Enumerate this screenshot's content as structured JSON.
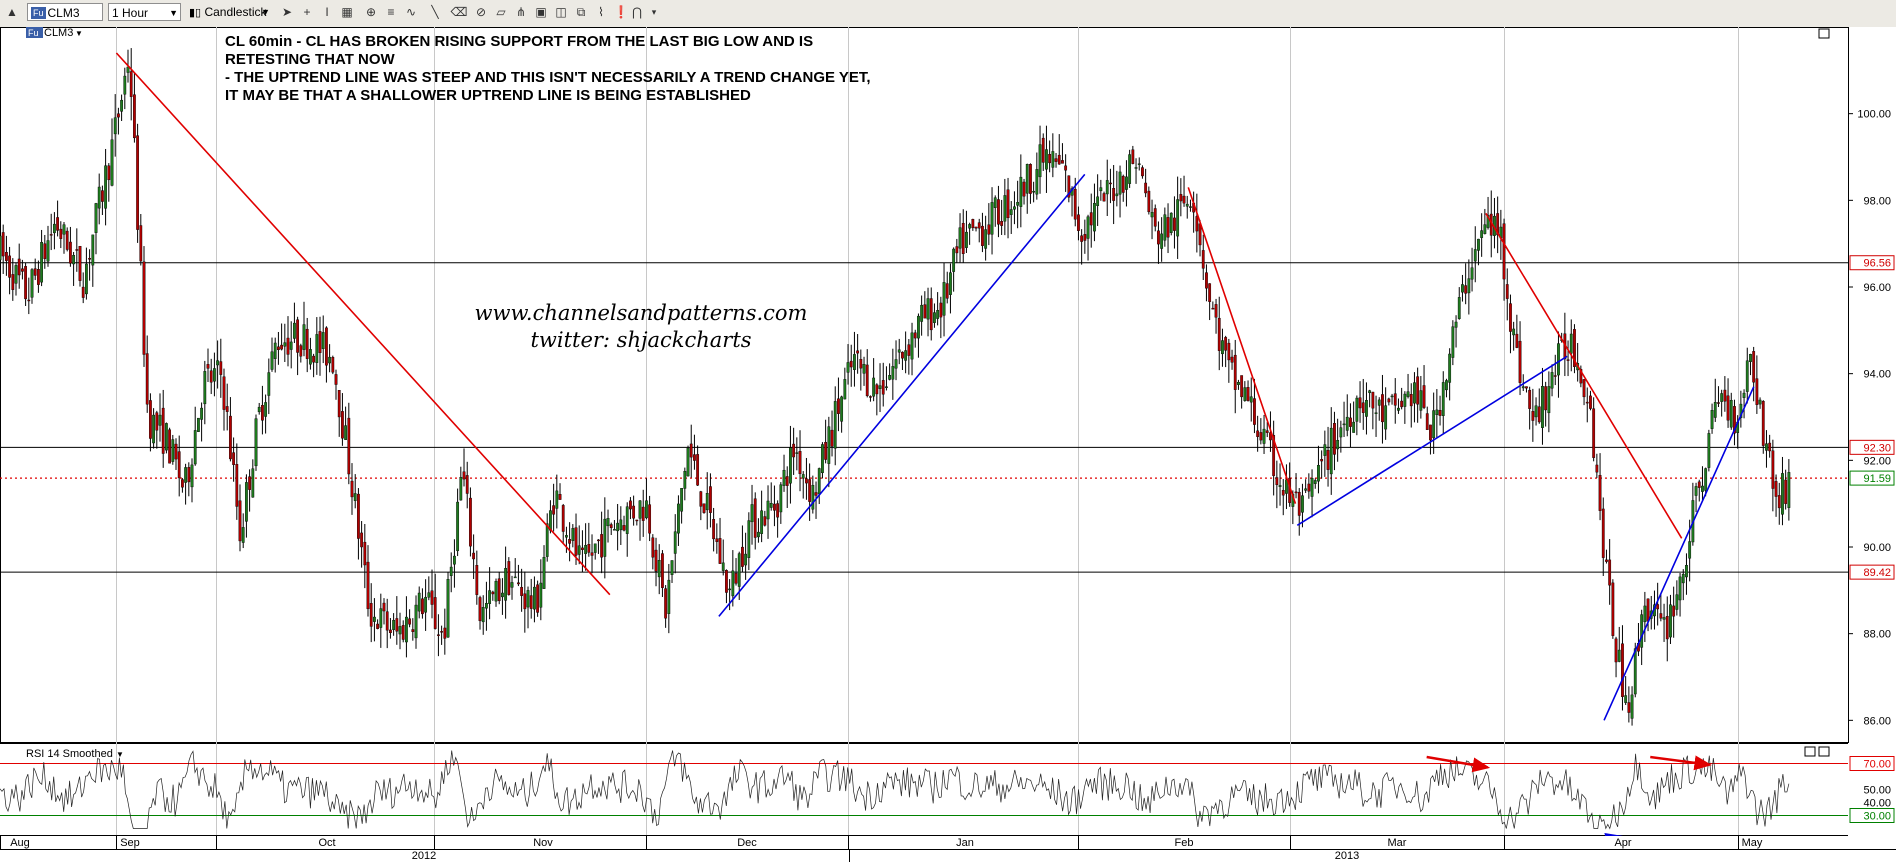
{
  "toolbar": {
    "symbol_prefix": "Fu",
    "symbol": "CLM3",
    "interval": "1 Hour",
    "chart_style": "Candlestick"
  },
  "chart_data": [
    {
      "type": "candlestick",
      "title": "CL 60min - CL HAS BROKEN RISING SUPPORT FROM THE LAST BIG LOW AND IS RETESTING THAT NOW - THE UPTREND LINE WAS STEEP AND THIS ISN'T NECESSARILY A TREND CHANGE YET, IT MAY BE THAT A SHALLOWER UPTREND LINE IS BEING ESTABLISHED",
      "annotation_lines": [
        "CL 60min - CL HAS BROKEN RISING SUPPORT FROM THE LAST BIG LOW AND IS",
        "RETESTING THAT NOW",
        "- THE UPTREND LINE WAS STEEP AND THIS ISN'T NECESSARILY A TREND CHANGE YET,",
        "IT MAY BE THAT A SHALLOWER UPTREND LINE IS BEING ESTABLISHED"
      ],
      "symbol_label": "CLM3",
      "symbol_prefix": "Fu",
      "watermark": [
        "www.channelsandpatterns.com",
        "twitter: shjackcharts"
      ],
      "ylim": [
        85.5,
        102.0
      ],
      "y_ticks": [
        "86.00",
        "88.00",
        "90.00",
        "92.00",
        "94.00",
        "96.00",
        "98.00",
        "100.00"
      ],
      "horizontal_levels": [
        {
          "value": 96.56,
          "label": "96.56",
          "color": "#d00000"
        },
        {
          "value": 92.3,
          "label": "92.30",
          "color": "#d00000"
        },
        {
          "value": 89.42,
          "label": "89.42",
          "color": "#d00000"
        }
      ],
      "last_price": {
        "value": 91.59,
        "label": "91.59",
        "color": "#008000"
      },
      "x_months": [
        "Aug",
        "Sep",
        "Oct",
        "Nov",
        "Dec",
        "Jan",
        "Feb",
        "Mar",
        "Apr",
        "May"
      ],
      "x_years": [
        "2012",
        "2013"
      ],
      "price_path": [
        [
          0.0,
          96.8
        ],
        [
          0.015,
          95.8
        ],
        [
          0.03,
          97.5
        ],
        [
          0.045,
          96.2
        ],
        [
          0.062,
          99.5
        ],
        [
          0.07,
          101.4
        ],
        [
          0.08,
          93.0
        ],
        [
          0.09,
          92.5
        ],
        [
          0.1,
          91.3
        ],
        [
          0.11,
          93.8
        ],
        [
          0.12,
          94.0
        ],
        [
          0.13,
          90.3
        ],
        [
          0.14,
          93.0
        ],
        [
          0.15,
          94.8
        ],
        [
          0.165,
          94.8
        ],
        [
          0.18,
          94.4
        ],
        [
          0.19,
          91.6
        ],
        [
          0.2,
          88.5
        ],
        [
          0.215,
          88.0
        ],
        [
          0.23,
          88.8
        ],
        [
          0.24,
          87.9
        ],
        [
          0.25,
          91.8
        ],
        [
          0.26,
          88.4
        ],
        [
          0.275,
          89.3
        ],
        [
          0.29,
          88.6
        ],
        [
          0.3,
          91.3
        ],
        [
          0.315,
          89.5
        ],
        [
          0.33,
          90.5
        ],
        [
          0.34,
          90.8
        ],
        [
          0.35,
          91.0
        ],
        [
          0.36,
          88.5
        ],
        [
          0.372,
          92.3
        ],
        [
          0.385,
          90.5
        ],
        [
          0.395,
          88.9
        ],
        [
          0.405,
          90.5
        ],
        [
          0.42,
          91.0
        ],
        [
          0.43,
          92.3
        ],
        [
          0.44,
          91.2
        ],
        [
          0.452,
          93.0
        ],
        [
          0.462,
          94.3
        ],
        [
          0.475,
          93.6
        ],
        [
          0.488,
          94.5
        ],
        [
          0.5,
          95.3
        ],
        [
          0.51,
          95.6
        ],
        [
          0.52,
          97.0
        ],
        [
          0.535,
          97.5
        ],
        [
          0.55,
          98.1
        ],
        [
          0.565,
          99.0
        ],
        [
          0.575,
          98.7
        ],
        [
          0.585,
          97.3
        ],
        [
          0.6,
          98.2
        ],
        [
          0.615,
          99.0
        ],
        [
          0.625,
          97.2
        ],
        [
          0.635,
          97.5
        ],
        [
          0.645,
          98.3
        ],
        [
          0.655,
          95.6
        ],
        [
          0.665,
          94.0
        ],
        [
          0.675,
          93.4
        ],
        [
          0.685,
          92.3
        ],
        [
          0.695,
          91.3
        ],
        [
          0.705,
          90.8
        ],
        [
          0.72,
          92.3
        ],
        [
          0.735,
          93.5
        ],
        [
          0.75,
          93.0
        ],
        [
          0.765,
          93.6
        ],
        [
          0.775,
          92.6
        ],
        [
          0.785,
          94.6
        ],
        [
          0.795,
          96.5
        ],
        [
          0.805,
          97.5
        ],
        [
          0.812,
          97.2
        ],
        [
          0.82,
          94.5
        ],
        [
          0.83,
          92.8
        ],
        [
          0.84,
          94.0
        ],
        [
          0.85,
          94.8
        ],
        [
          0.86,
          93.5
        ],
        [
          0.87,
          89.0
        ],
        [
          0.877,
          87.0
        ],
        [
          0.882,
          86.5
        ],
        [
          0.89,
          88.8
        ],
        [
          0.9,
          88.0
        ],
        [
          0.91,
          89.3
        ],
        [
          0.92,
          91.5
        ],
        [
          0.93,
          93.5
        ],
        [
          0.94,
          93.0
        ],
        [
          0.947,
          94.5
        ],
        [
          0.955,
          92.5
        ],
        [
          0.962,
          91.0
        ],
        [
          0.968,
          91.6
        ]
      ],
      "trendlines": [
        {
          "color": "#e00000",
          "from": [
            0.063,
            101.4
          ],
          "to": [
            0.33,
            88.9
          ]
        },
        {
          "color": "#e00000",
          "from": [
            0.643,
            98.3
          ],
          "to": [
            0.701,
            91.0
          ]
        },
        {
          "color": "#e00000",
          "from": [
            0.804,
            97.7
          ],
          "to": [
            0.91,
            90.2
          ]
        },
        {
          "color": "#0000e0",
          "from": [
            0.389,
            88.4
          ],
          "to": [
            0.587,
            98.6
          ]
        },
        {
          "color": "#0000e0",
          "from": [
            0.702,
            90.5
          ],
          "to": [
            0.848,
            94.4
          ]
        },
        {
          "color": "#0000e0",
          "from": [
            0.868,
            86.0
          ],
          "to": [
            0.949,
            93.7
          ]
        }
      ]
    },
    {
      "type": "line",
      "title": "RSI 14 Smoothed",
      "ylim": [
        15,
        85
      ],
      "y_ticks": [
        "50.00",
        "40.00"
      ],
      "levels": [
        {
          "value": 70,
          "label": "70.00",
          "color": "#e00000"
        },
        {
          "value": 30,
          "label": "30.00",
          "color": "#008000"
        }
      ],
      "arrows": [
        {
          "color": "#e00000",
          "from": [
            0.772,
            75
          ],
          "to": [
            0.805,
            67
          ]
        },
        {
          "color": "#e00000",
          "from": [
            0.893,
            75
          ],
          "to": [
            0.925,
            69
          ]
        },
        {
          "color": "#0000e0",
          "from": [
            0.808,
            8
          ],
          "to": [
            0.823,
            18
          ]
        },
        {
          "color": "#0000e0",
          "from": [
            0.846,
            5
          ],
          "to": [
            0.877,
            23
          ]
        }
      ]
    }
  ]
}
